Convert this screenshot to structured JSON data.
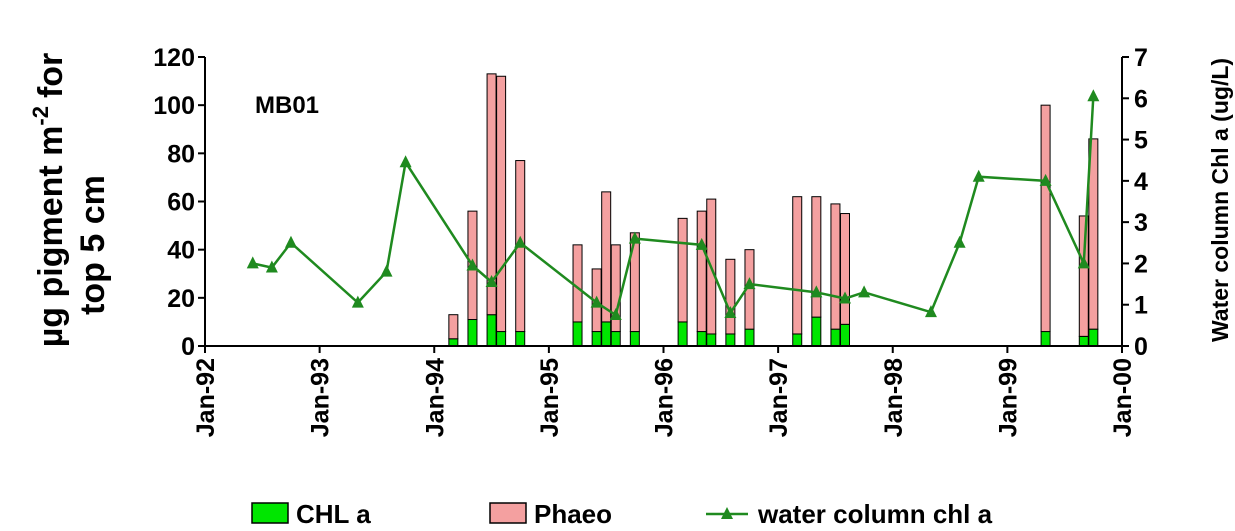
{
  "chart_data": {
    "type": "bar",
    "stacked": true,
    "annotation": "MB01",
    "ylabel": {
      "main": "µg pigment m",
      "sup": "-2",
      "tail": "for",
      "line2": "top 5 cm"
    },
    "y2label": "Water column Chl a (ug/L)",
    "xlim": [
      "1992-01",
      "2000-01"
    ],
    "xticks": [
      {
        "value": "1992-01",
        "label": "Jan-92"
      },
      {
        "value": "1993-01",
        "label": "Jan-93"
      },
      {
        "value": "1994-01",
        "label": "Jan-94"
      },
      {
        "value": "1995-01",
        "label": "Jan-95"
      },
      {
        "value": "1996-01",
        "label": "Jan-96"
      },
      {
        "value": "1997-01",
        "label": "Jan-97"
      },
      {
        "value": "1998-01",
        "label": "Jan-98"
      },
      {
        "value": "1999-01",
        "label": "Jan-99"
      },
      {
        "value": "2000-01",
        "label": "Jan-00"
      }
    ],
    "ylim": [
      0,
      120
    ],
    "yticks": [
      0,
      20,
      40,
      60,
      80,
      100,
      120
    ],
    "y2lim": [
      0,
      7
    ],
    "y2ticks": [
      0,
      1,
      2,
      3,
      4,
      5,
      6,
      7
    ],
    "series": [
      {
        "name": "CHL a",
        "type": "bar",
        "color": "#00e600",
        "x": [
          "1994-03",
          "1994-05",
          "1994-07",
          "1994-08",
          "1994-10",
          "1995-04",
          "1995-06",
          "1995-07",
          "1995-08",
          "1995-10",
          "1996-03",
          "1996-05",
          "1996-06",
          "1996-08",
          "1996-10",
          "1997-03",
          "1997-05",
          "1997-07",
          "1997-08",
          "1999-05",
          "1999-09",
          "1999-10"
        ],
        "values": [
          3,
          11,
          13,
          6,
          6,
          10,
          6,
          10,
          6,
          6,
          10,
          6,
          5,
          5,
          7,
          5,
          12,
          7,
          9,
          6,
          4,
          7
        ]
      },
      {
        "name": "Phaeo",
        "type": "bar",
        "color": "#f4a0a0",
        "x": [
          "1994-03",
          "1994-05",
          "1994-07",
          "1994-08",
          "1994-10",
          "1995-04",
          "1995-06",
          "1995-07",
          "1995-08",
          "1995-10",
          "1996-03",
          "1996-05",
          "1996-06",
          "1996-08",
          "1996-10",
          "1997-03",
          "1997-05",
          "1997-07",
          "1997-08",
          "1999-05",
          "1999-09",
          "1999-10"
        ],
        "values": [
          10,
          45,
          100,
          106,
          71,
          32,
          26,
          54,
          36,
          41,
          43,
          50,
          56,
          31,
          33,
          57,
          50,
          52,
          46,
          94,
          50,
          79
        ]
      },
      {
        "name": "water column chl a",
        "type": "line",
        "axis": "y2",
        "color": "#1f8a1f",
        "x": [
          "1992-06",
          "1992-08",
          "1992-10",
          "1993-05",
          "1993-08",
          "1993-10",
          "1994-05",
          "1994-07",
          "1994-10",
          "1995-06",
          "1995-08",
          "1995-10",
          "1996-05",
          "1996-08",
          "1996-10",
          "1997-05",
          "1997-08",
          "1997-10",
          "1998-05",
          "1998-08",
          "1998-10",
          "1999-05",
          "1999-09",
          "1999-10"
        ],
        "values": [
          2.0,
          1.9,
          2.5,
          1.05,
          1.8,
          4.45,
          1.95,
          1.55,
          2.5,
          1.05,
          0.75,
          2.6,
          2.45,
          0.8,
          1.5,
          1.3,
          1.15,
          1.3,
          0.82,
          2.5,
          4.1,
          4.0,
          2.0,
          6.05
        ]
      }
    ]
  }
}
